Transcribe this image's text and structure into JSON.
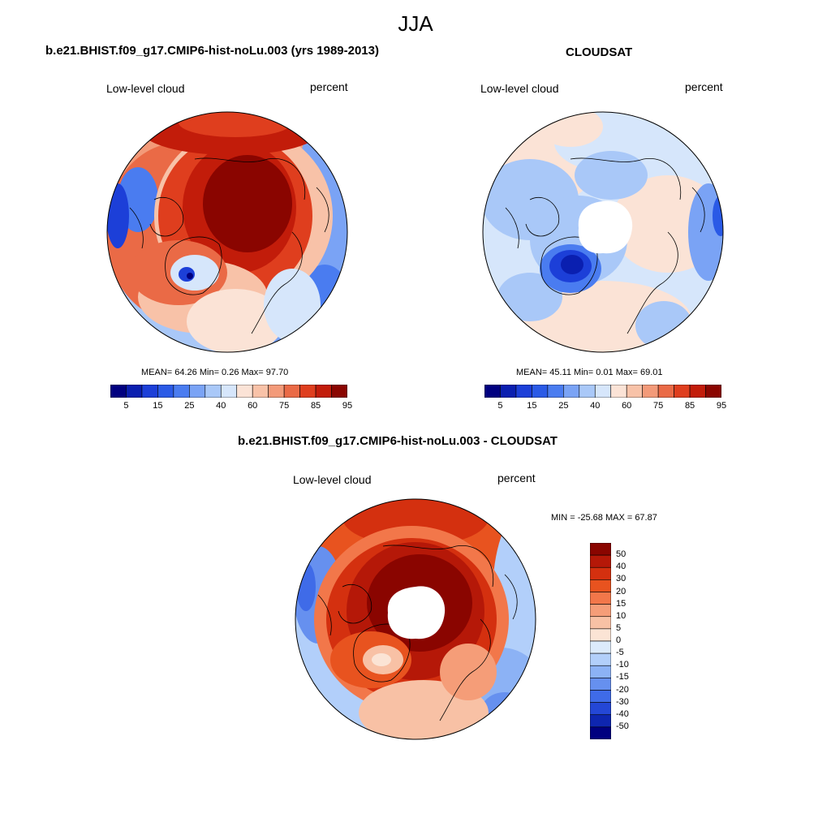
{
  "season": "JJA",
  "panels": [
    {
      "title": "b.e21.BHIST.f09_g17.CMIP6-hist-noLu.003 (yrs 1989-2013)",
      "left_label": "Low-level cloud",
      "right_label": "percent",
      "stats": "MEAN=  64.26  Min=   0.26  Max=  97.70",
      "pole_gap": false
    },
    {
      "title": "CLOUDSAT",
      "left_label": "Low-level cloud",
      "right_label": "percent",
      "stats": "MEAN=  45.11  Min=   0.01  Max=  69.01",
      "pole_gap": true
    },
    {
      "title": "b.e21.BHIST.f09_g17.CMIP6-hist-noLu.003 - CLOUDSAT",
      "left_label": "Low-level cloud",
      "right_label": "percent",
      "stats": "MIN = -25.68 MAX =  67.87",
      "pole_gap": true
    }
  ],
  "colorbar_abs": {
    "colors": [
      "#000080",
      "#0a1fb0",
      "#1c3fd8",
      "#2a5ae6",
      "#4a7cf0",
      "#7aa3f5",
      "#a9c8f8",
      "#d6e6fb",
      "#fbe3d6",
      "#f8c2a8",
      "#f39a79",
      "#ea6a46",
      "#df3e1e",
      "#c21c0a",
      "#8a0500"
    ],
    "tick_labels": [
      "5",
      "15",
      "25",
      "40",
      "60",
      "75",
      "85",
      "95"
    ]
  },
  "colorbar_diff": {
    "colors": [
      "#8a0500",
      "#b51808",
      "#d4300f",
      "#e8531f",
      "#f2774a",
      "#f59d78",
      "#f8c1a5",
      "#fbe4d5",
      "#dcebfc",
      "#b2cffa",
      "#8cb2f5",
      "#6690ef",
      "#3f6be8",
      "#2447d6",
      "#0e26b0",
      "#000080"
    ],
    "tick_labels": [
      "50",
      "40",
      "30",
      "20",
      "15",
      "10",
      "5",
      "0",
      "-5",
      "-10",
      "-15",
      "-20",
      "-30",
      "-40",
      "-50"
    ]
  }
}
